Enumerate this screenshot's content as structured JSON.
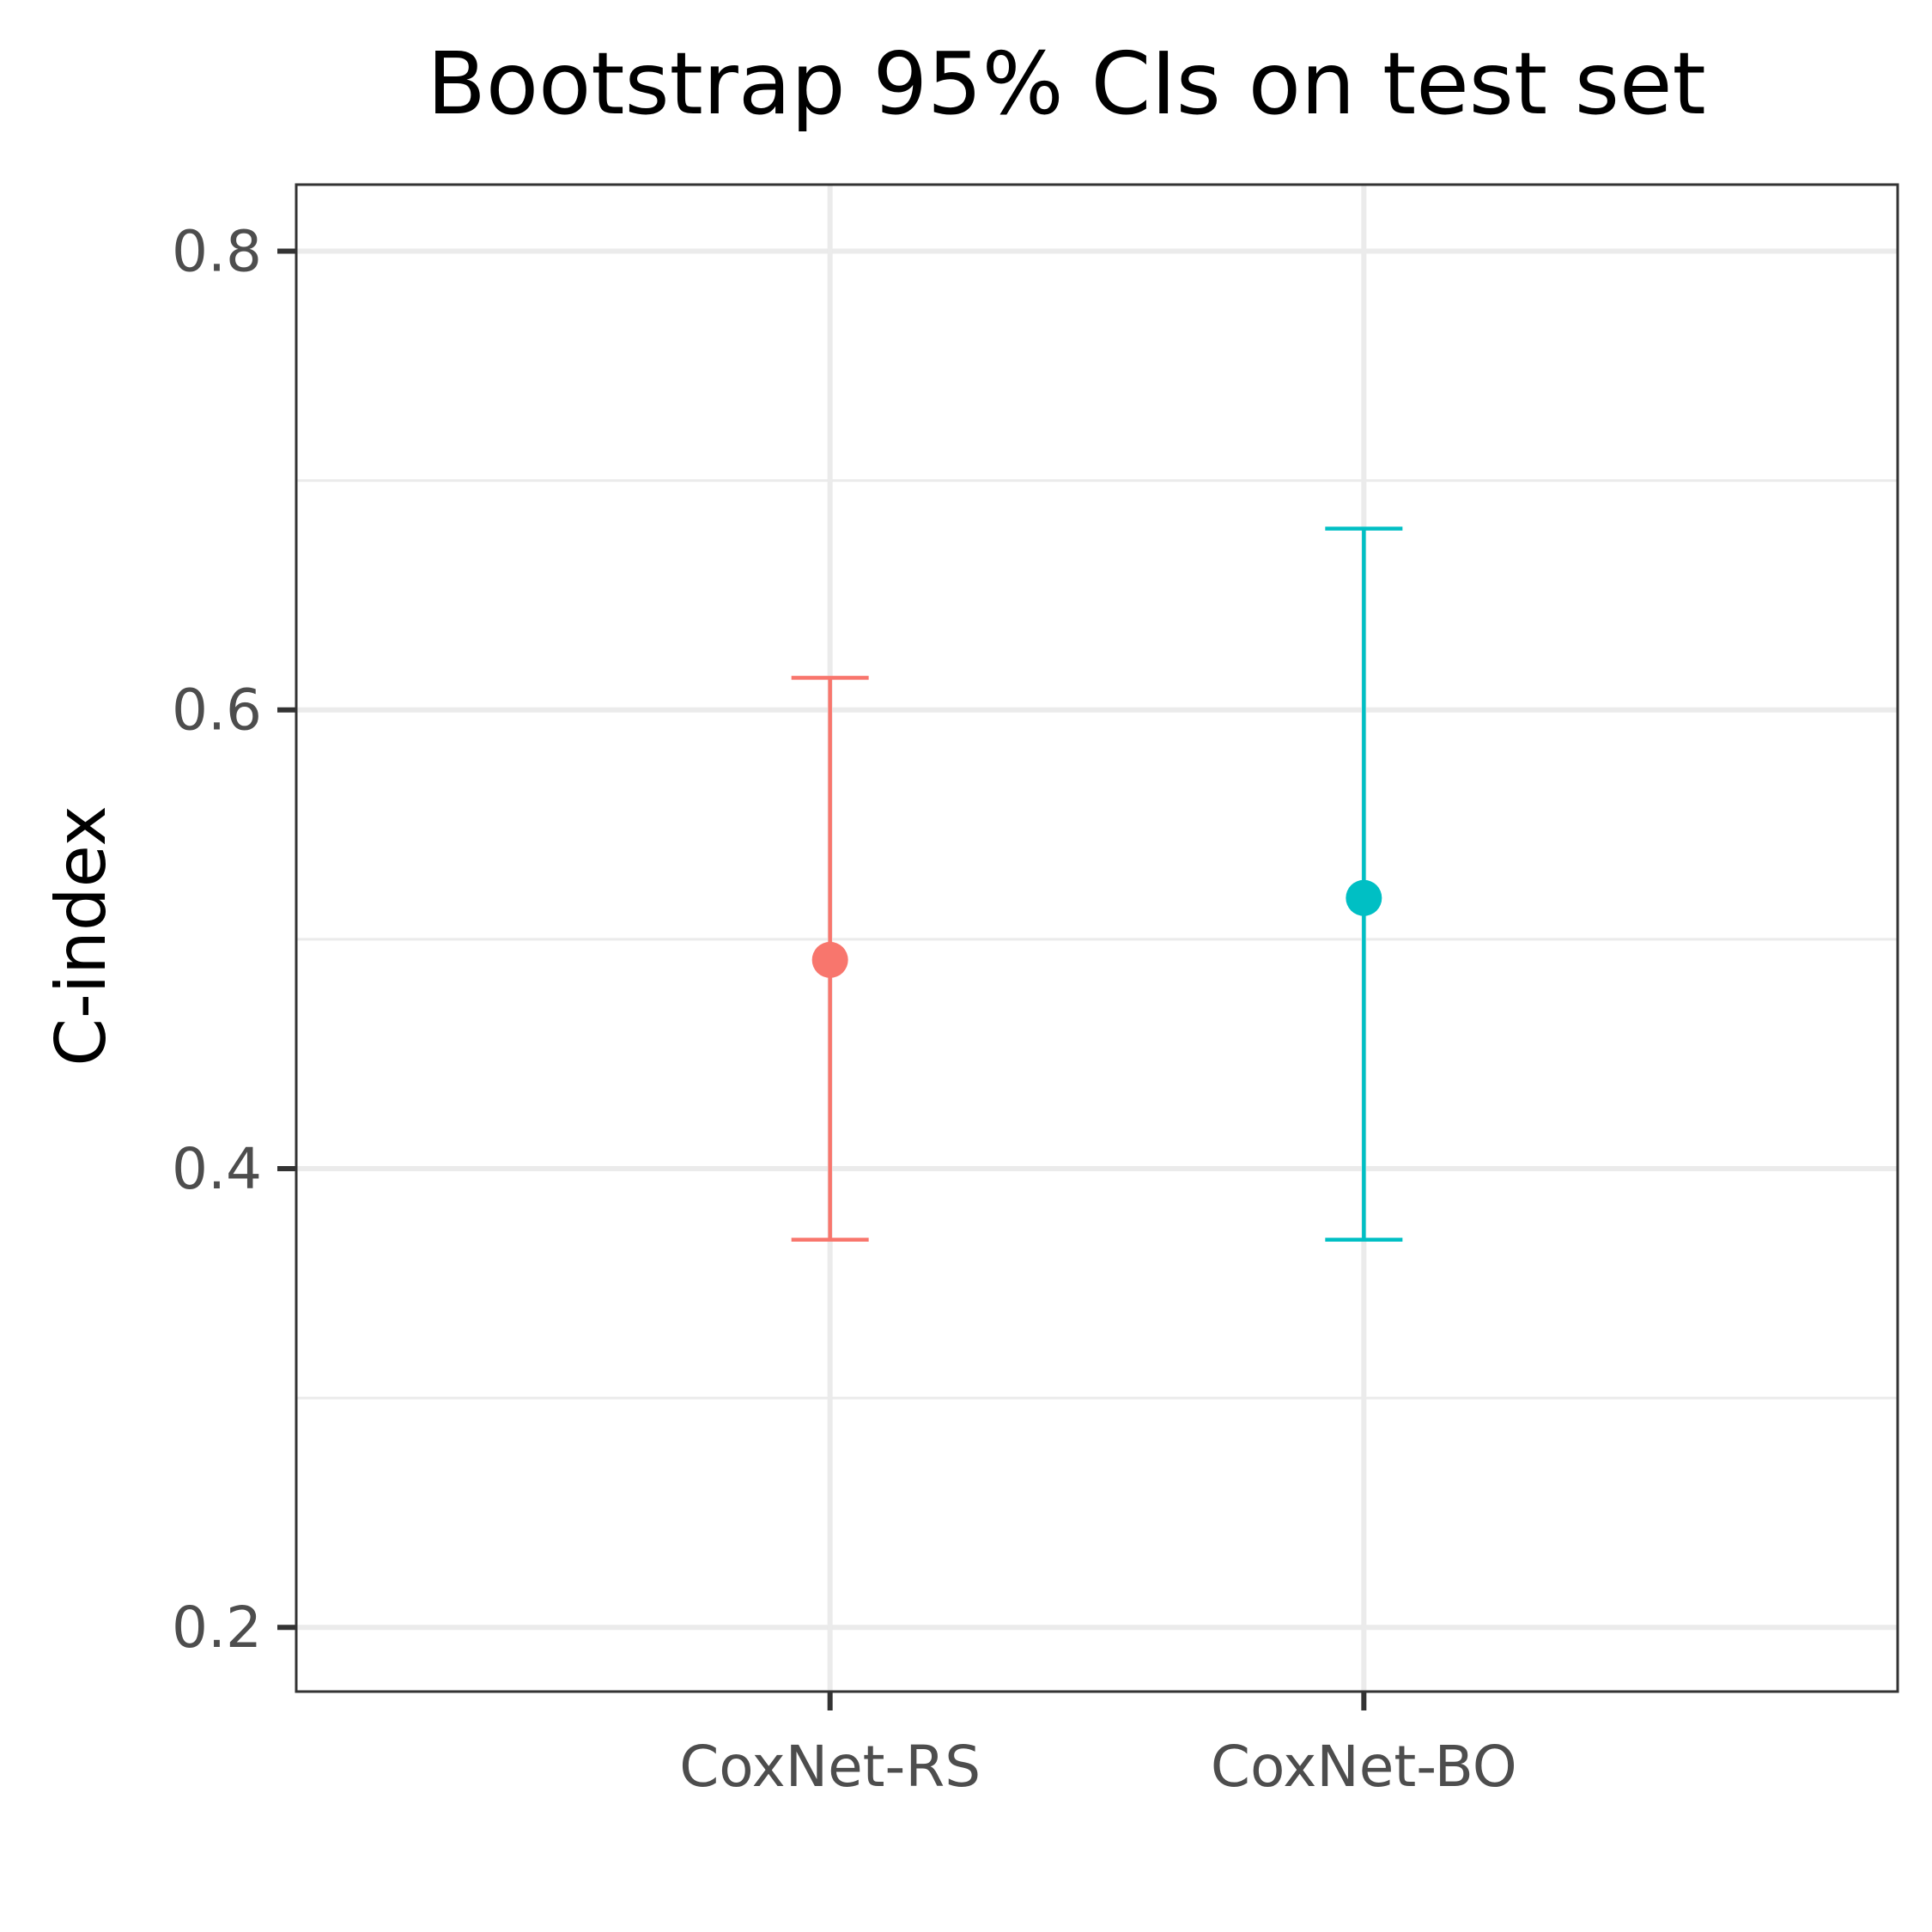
{
  "chart_data": {
    "type": "errorbar",
    "title": "Bootstrap 95% CIs on test set",
    "xlabel": "",
    "ylabel": "C-index",
    "categories": [
      "CoxNet-RS",
      "CoxNet-BO"
    ],
    "points": [
      {
        "category": "CoxNet-RS",
        "estimate": 0.491,
        "lower": 0.369,
        "upper": 0.614,
        "color": "#F8766D"
      },
      {
        "category": "CoxNet-BO",
        "estimate": 0.518,
        "lower": 0.369,
        "upper": 0.679,
        "color": "#00BFC4"
      }
    ],
    "ylim": [
      0.172,
      0.829
    ],
    "yticks": [
      0.2,
      0.4,
      0.6,
      0.8
    ],
    "ytick_labels": [
      "0.2",
      "0.4",
      "0.6",
      "0.8"
    ],
    "y_minor_ticks": [
      0.3,
      0.5,
      0.7
    ],
    "grid": true,
    "legend": "none"
  }
}
